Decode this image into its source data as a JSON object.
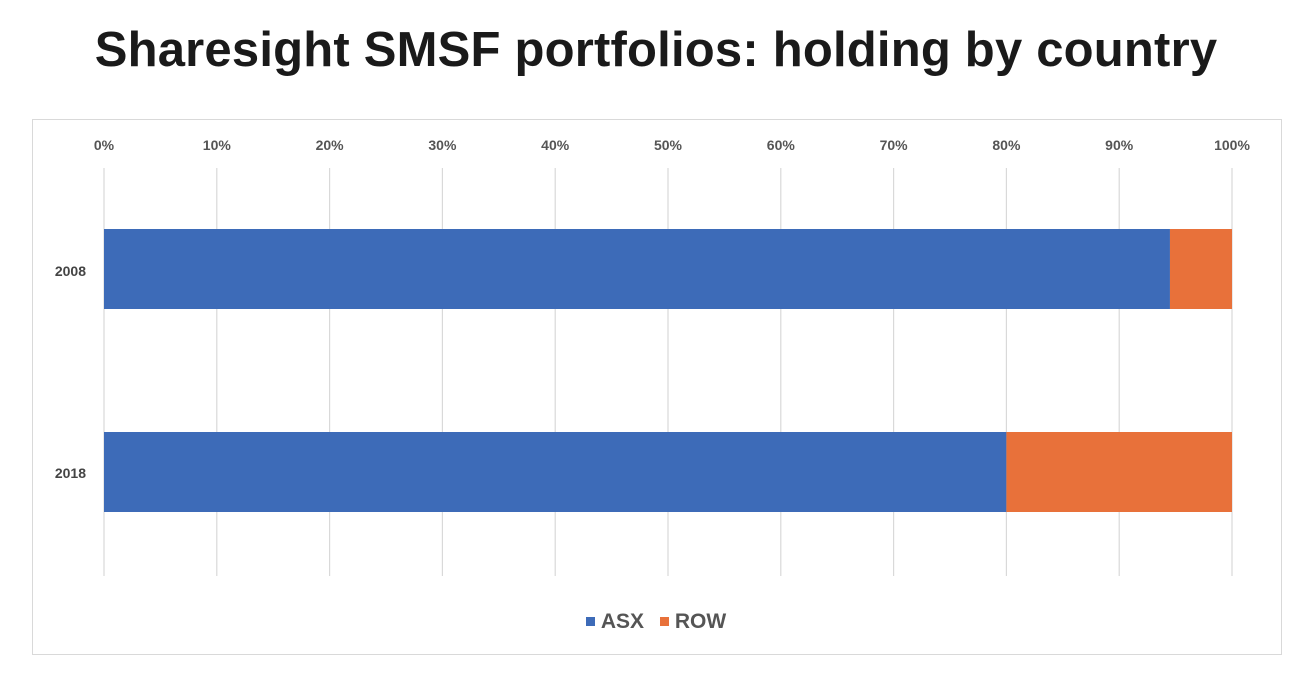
{
  "title": "Sharesight SMSF portfolios: holding by country",
  "colors": {
    "ASX": "#3d6bb8",
    "ROW": "#e8713a",
    "grid": "#d9d9d9"
  },
  "chart_data": {
    "type": "bar",
    "orientation": "horizontal",
    "stacked": "percent",
    "title": "Sharesight SMSF portfolios: holding by country",
    "categories": [
      "2008",
      "2018"
    ],
    "series": [
      {
        "name": "ASX",
        "values": [
          94.5,
          80
        ]
      },
      {
        "name": "ROW",
        "values": [
          5.5,
          20
        ]
      }
    ],
    "xlim": [
      0,
      100
    ],
    "x_ticks": [
      "0%",
      "10%",
      "20%",
      "30%",
      "40%",
      "50%",
      "60%",
      "70%",
      "80%",
      "90%",
      "100%"
    ],
    "xlabel": "",
    "ylabel": "",
    "grid": true,
    "legend_position": "bottom"
  },
  "legend": [
    {
      "name": "ASX"
    },
    {
      "name": "ROW"
    }
  ]
}
